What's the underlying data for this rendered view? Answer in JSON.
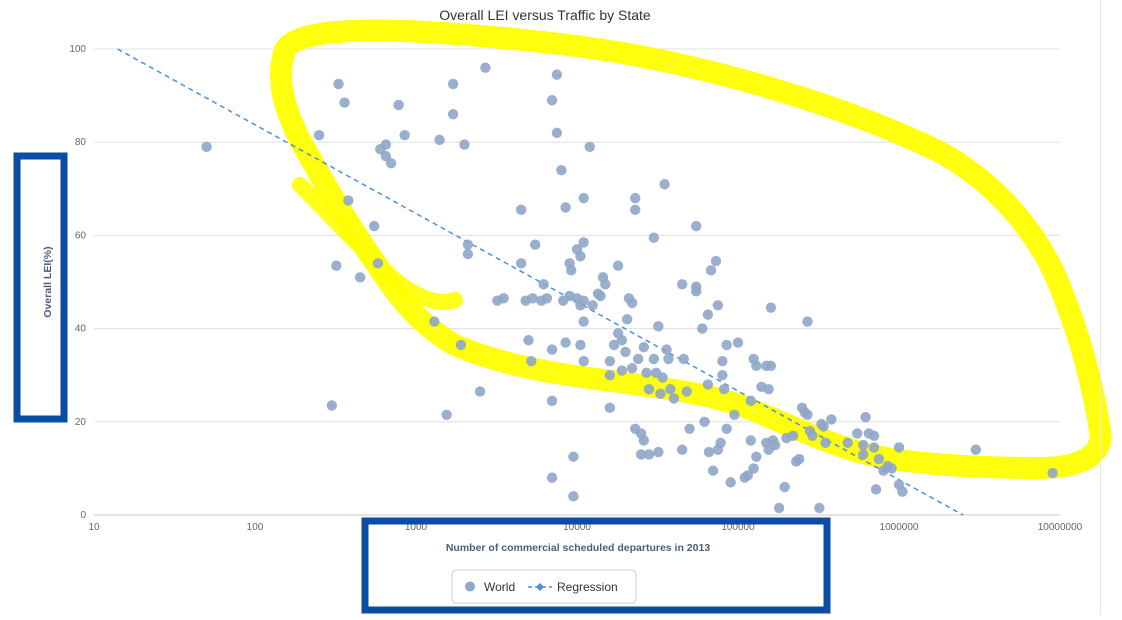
{
  "chart_data": {
    "type": "scatter",
    "title": "Overall LEI versus Traffic by State",
    "xlabel": "Number of commercial scheduled departures in 2013",
    "ylabel": "Overall LEI(%)",
    "xscale": "log",
    "xlim": [
      10,
      10000000
    ],
    "ylim": [
      0,
      100
    ],
    "x_ticks": [
      "10",
      "100",
      "1000",
      "10000",
      "100000",
      "1000000",
      "10000000"
    ],
    "y_ticks": [
      "0",
      "20",
      "40",
      "60",
      "80",
      "100"
    ],
    "grid": "horizontal",
    "legend_position": "bottom",
    "series": [
      {
        "name": "World",
        "marker": "circle",
        "color": "#8ea6c8",
        "points": [
          [
            50,
            79
          ],
          [
            250,
            81.5
          ],
          [
            300,
            23.5
          ],
          [
            320,
            53.5
          ],
          [
            330,
            92.5
          ],
          [
            360,
            88.5
          ],
          [
            380,
            67.5
          ],
          [
            450,
            51
          ],
          [
            550,
            62
          ],
          [
            580,
            54
          ],
          [
            600,
            78.5
          ],
          [
            650,
            79.5
          ],
          [
            650,
            77
          ],
          [
            700,
            75.5
          ],
          [
            780,
            88
          ],
          [
            850,
            81.5
          ],
          [
            1300,
            41.5
          ],
          [
            1400,
            80.5
          ],
          [
            1550,
            21.5
          ],
          [
            1700,
            92.5
          ],
          [
            1700,
            86
          ],
          [
            1900,
            36.5
          ],
          [
            2000,
            79.5
          ],
          [
            2100,
            58
          ],
          [
            2100,
            56
          ],
          [
            2500,
            26.5
          ],
          [
            2700,
            96
          ],
          [
            3200,
            46
          ],
          [
            3500,
            46.5
          ],
          [
            4500,
            65.5
          ],
          [
            4500,
            54
          ],
          [
            4800,
            46
          ],
          [
            5000,
            37.5
          ],
          [
            5200,
            33
          ],
          [
            5300,
            46.5
          ],
          [
            5500,
            58
          ],
          [
            6000,
            46
          ],
          [
            6200,
            49.5
          ],
          [
            6500,
            46.5
          ],
          [
            7000,
            24.5
          ],
          [
            7000,
            89
          ],
          [
            7000,
            8
          ],
          [
            7000,
            35.5
          ],
          [
            7500,
            94.5
          ],
          [
            7500,
            82
          ],
          [
            8000,
            74
          ],
          [
            8200,
            46
          ],
          [
            8500,
            66
          ],
          [
            8500,
            37
          ],
          [
            9000,
            54
          ],
          [
            9000,
            47
          ],
          [
            9200,
            52.5
          ],
          [
            9500,
            4
          ],
          [
            9500,
            12.5
          ],
          [
            10000,
            57
          ],
          [
            10000,
            46.5
          ],
          [
            10500,
            55.5
          ],
          [
            10500,
            45
          ],
          [
            10500,
            36.5
          ],
          [
            11000,
            68
          ],
          [
            11000,
            58.5
          ],
          [
            11000,
            41.5
          ],
          [
            11000,
            33
          ],
          [
            11000,
            46
          ],
          [
            12000,
            79
          ],
          [
            12500,
            45
          ],
          [
            13500,
            47.5
          ],
          [
            14000,
            47
          ],
          [
            14500,
            51
          ],
          [
            15000,
            49.5
          ],
          [
            16000,
            23
          ],
          [
            16000,
            30
          ],
          [
            16000,
            33
          ],
          [
            17000,
            36.5
          ],
          [
            18000,
            39
          ],
          [
            18000,
            53.5
          ],
          [
            19000,
            37.5
          ],
          [
            19000,
            31
          ],
          [
            20000,
            35
          ],
          [
            20500,
            42
          ],
          [
            21000,
            46.5
          ],
          [
            22000,
            45.5
          ],
          [
            22000,
            31.5
          ],
          [
            23000,
            68
          ],
          [
            23000,
            65.5
          ],
          [
            23000,
            18.5
          ],
          [
            24000,
            33.5
          ],
          [
            25000,
            17.5
          ],
          [
            25000,
            13
          ],
          [
            26000,
            16
          ],
          [
            26000,
            36
          ],
          [
            27000,
            30.5
          ],
          [
            28000,
            13
          ],
          [
            28000,
            27
          ],
          [
            30000,
            33.5
          ],
          [
            30000,
            59.5
          ],
          [
            31000,
            30.5
          ],
          [
            32000,
            40.5
          ],
          [
            32000,
            13.5
          ],
          [
            33000,
            26
          ],
          [
            34000,
            29.5
          ],
          [
            35000,
            71
          ],
          [
            36000,
            35.5
          ],
          [
            37000,
            33.5
          ],
          [
            38000,
            27
          ],
          [
            40000,
            25
          ],
          [
            45000,
            49.5
          ],
          [
            45000,
            14
          ],
          [
            46000,
            33.5
          ],
          [
            48000,
            26.5
          ],
          [
            50000,
            18.5
          ],
          [
            55000,
            62
          ],
          [
            55000,
            48
          ],
          [
            55000,
            49
          ],
          [
            60000,
            40
          ],
          [
            62000,
            20
          ],
          [
            65000,
            43
          ],
          [
            65000,
            28
          ],
          [
            66000,
            13.5
          ],
          [
            68000,
            52.5
          ],
          [
            70000,
            9.5
          ],
          [
            73000,
            54.5
          ],
          [
            75000,
            45
          ],
          [
            75000,
            14
          ],
          [
            78000,
            15.5
          ],
          [
            80000,
            30
          ],
          [
            80000,
            33
          ],
          [
            82000,
            27
          ],
          [
            85000,
            36.5
          ],
          [
            85000,
            18.5
          ],
          [
            90000,
            7
          ],
          [
            95000,
            21.5
          ],
          [
            100000,
            37
          ],
          [
            110000,
            8
          ],
          [
            115000,
            8.5
          ],
          [
            120000,
            16
          ],
          [
            120000,
            24.5
          ],
          [
            125000,
            10
          ],
          [
            125000,
            33.5
          ],
          [
            130000,
            12.5
          ],
          [
            130000,
            32
          ],
          [
            140000,
            27.5
          ],
          [
            150000,
            15.5
          ],
          [
            150000,
            32
          ],
          [
            155000,
            14
          ],
          [
            155000,
            27
          ],
          [
            160000,
            44.5
          ],
          [
            160000,
            32
          ],
          [
            165000,
            16
          ],
          [
            170000,
            15
          ],
          [
            180000,
            1.5
          ],
          [
            195000,
            6
          ],
          [
            200000,
            16.5
          ],
          [
            220000,
            17
          ],
          [
            230000,
            11.5
          ],
          [
            240000,
            12
          ],
          [
            250000,
            23
          ],
          [
            260000,
            22
          ],
          [
            270000,
            41.5
          ],
          [
            270000,
            21.5
          ],
          [
            280000,
            18
          ],
          [
            290000,
            17
          ],
          [
            320000,
            1.5
          ],
          [
            330000,
            19.5
          ],
          [
            340000,
            19
          ],
          [
            350000,
            15.5
          ],
          [
            380000,
            20.5
          ],
          [
            480000,
            15.5
          ],
          [
            550000,
            17.5
          ],
          [
            600000,
            13
          ],
          [
            600000,
            15
          ],
          [
            620000,
            21
          ],
          [
            650000,
            17.5
          ],
          [
            700000,
            14.5
          ],
          [
            700000,
            17
          ],
          [
            720000,
            5.5
          ],
          [
            750000,
            12
          ],
          [
            800000,
            9.5
          ],
          [
            850000,
            10.5
          ],
          [
            900000,
            10
          ],
          [
            1000000,
            14.5
          ],
          [
            1000000,
            6.5
          ],
          [
            1050000,
            5
          ],
          [
            3000000,
            14
          ],
          [
            9000000,
            9
          ]
        ]
      },
      {
        "name": "Regression",
        "type": "line",
        "style": "dashed",
        "color": "#4a90e2",
        "line_x": [
          14,
          2500000
        ],
        "line_y": [
          100,
          0
        ]
      }
    ]
  },
  "annotations": {
    "highlight_color": "#ffff00",
    "box_color": "#0a4da3"
  }
}
